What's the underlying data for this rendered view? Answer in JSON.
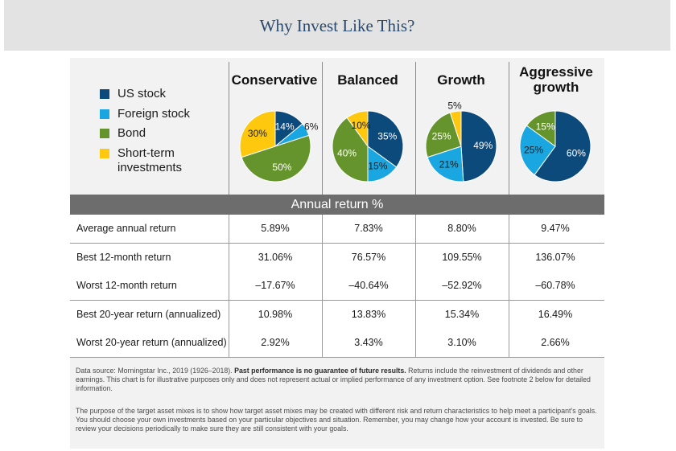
{
  "page": {
    "title": "Why Invest Like This?"
  },
  "legend": {
    "items": [
      {
        "label": "US stock",
        "color": "#0d4a7c"
      },
      {
        "label": "Foreign stock",
        "color": "#1aa6e0"
      },
      {
        "label": "Bond",
        "color": "#66942c"
      },
      {
        "label": "Short-term investments",
        "color": "#fdc80e"
      }
    ]
  },
  "chart_data": {
    "type": "pie",
    "categories": [
      "US stock",
      "Foreign stock",
      "Bond",
      "Short-term investments"
    ],
    "colors": [
      "#0d4a7c",
      "#1aa6e0",
      "#66942c",
      "#fdc80e"
    ],
    "series": [
      {
        "name": "Conservative",
        "values": [
          14,
          6,
          50,
          30
        ]
      },
      {
        "name": "Balanced",
        "values": [
          35,
          15,
          40,
          10
        ]
      },
      {
        "name": "Growth",
        "values": [
          49,
          21,
          25,
          5
        ]
      },
      {
        "name": "Aggressive growth",
        "values": [
          60,
          25,
          15,
          0
        ]
      }
    ]
  },
  "section": {
    "label": "Annual return %"
  },
  "table": {
    "rows": [
      {
        "label": "Average annual return",
        "values": [
          "5.89%",
          "7.83%",
          "8.80%",
          "9.47%"
        ]
      },
      {
        "label": "Best 12-month return",
        "values": [
          "31.06%",
          "76.57%",
          "109.55%",
          "136.07%"
        ]
      },
      {
        "label": "Worst 12-month return",
        "values": [
          "–17.67%",
          "–40.64%",
          "–52.92%",
          "–60.78%"
        ]
      },
      {
        "label": "Best 20-year return (annualized)",
        "values": [
          "10.98%",
          "13.83%",
          "15.34%",
          "16.49%"
        ]
      },
      {
        "label": "Worst 20-year return (annualized)",
        "values": [
          "2.92%",
          "3.43%",
          "3.10%",
          "2.66%"
        ]
      }
    ]
  },
  "footnotes": {
    "p1_a": "Data source: Morningstar Inc., 2019 (1926–2018).",
    "p1_bold": "Past performance is no guarantee of future results.",
    "p1_b": "Returns include the reinvestment of dividends and other earnings. This chart is for illustrative purposes only and does not represent actual or implied performance of any investment option. See footnote 2 below for detailed information.",
    "p2": "The purpose of the target asset mixes is to show how target asset mixes may be created with different risk and return characteristics to help meet a participant’s goals. You should choose your own investments based on your particular objectives and situation. Remember, you may change how your account is invested. Be sure to review your decisions periodically to make sure they are still consistent with your goals."
  }
}
